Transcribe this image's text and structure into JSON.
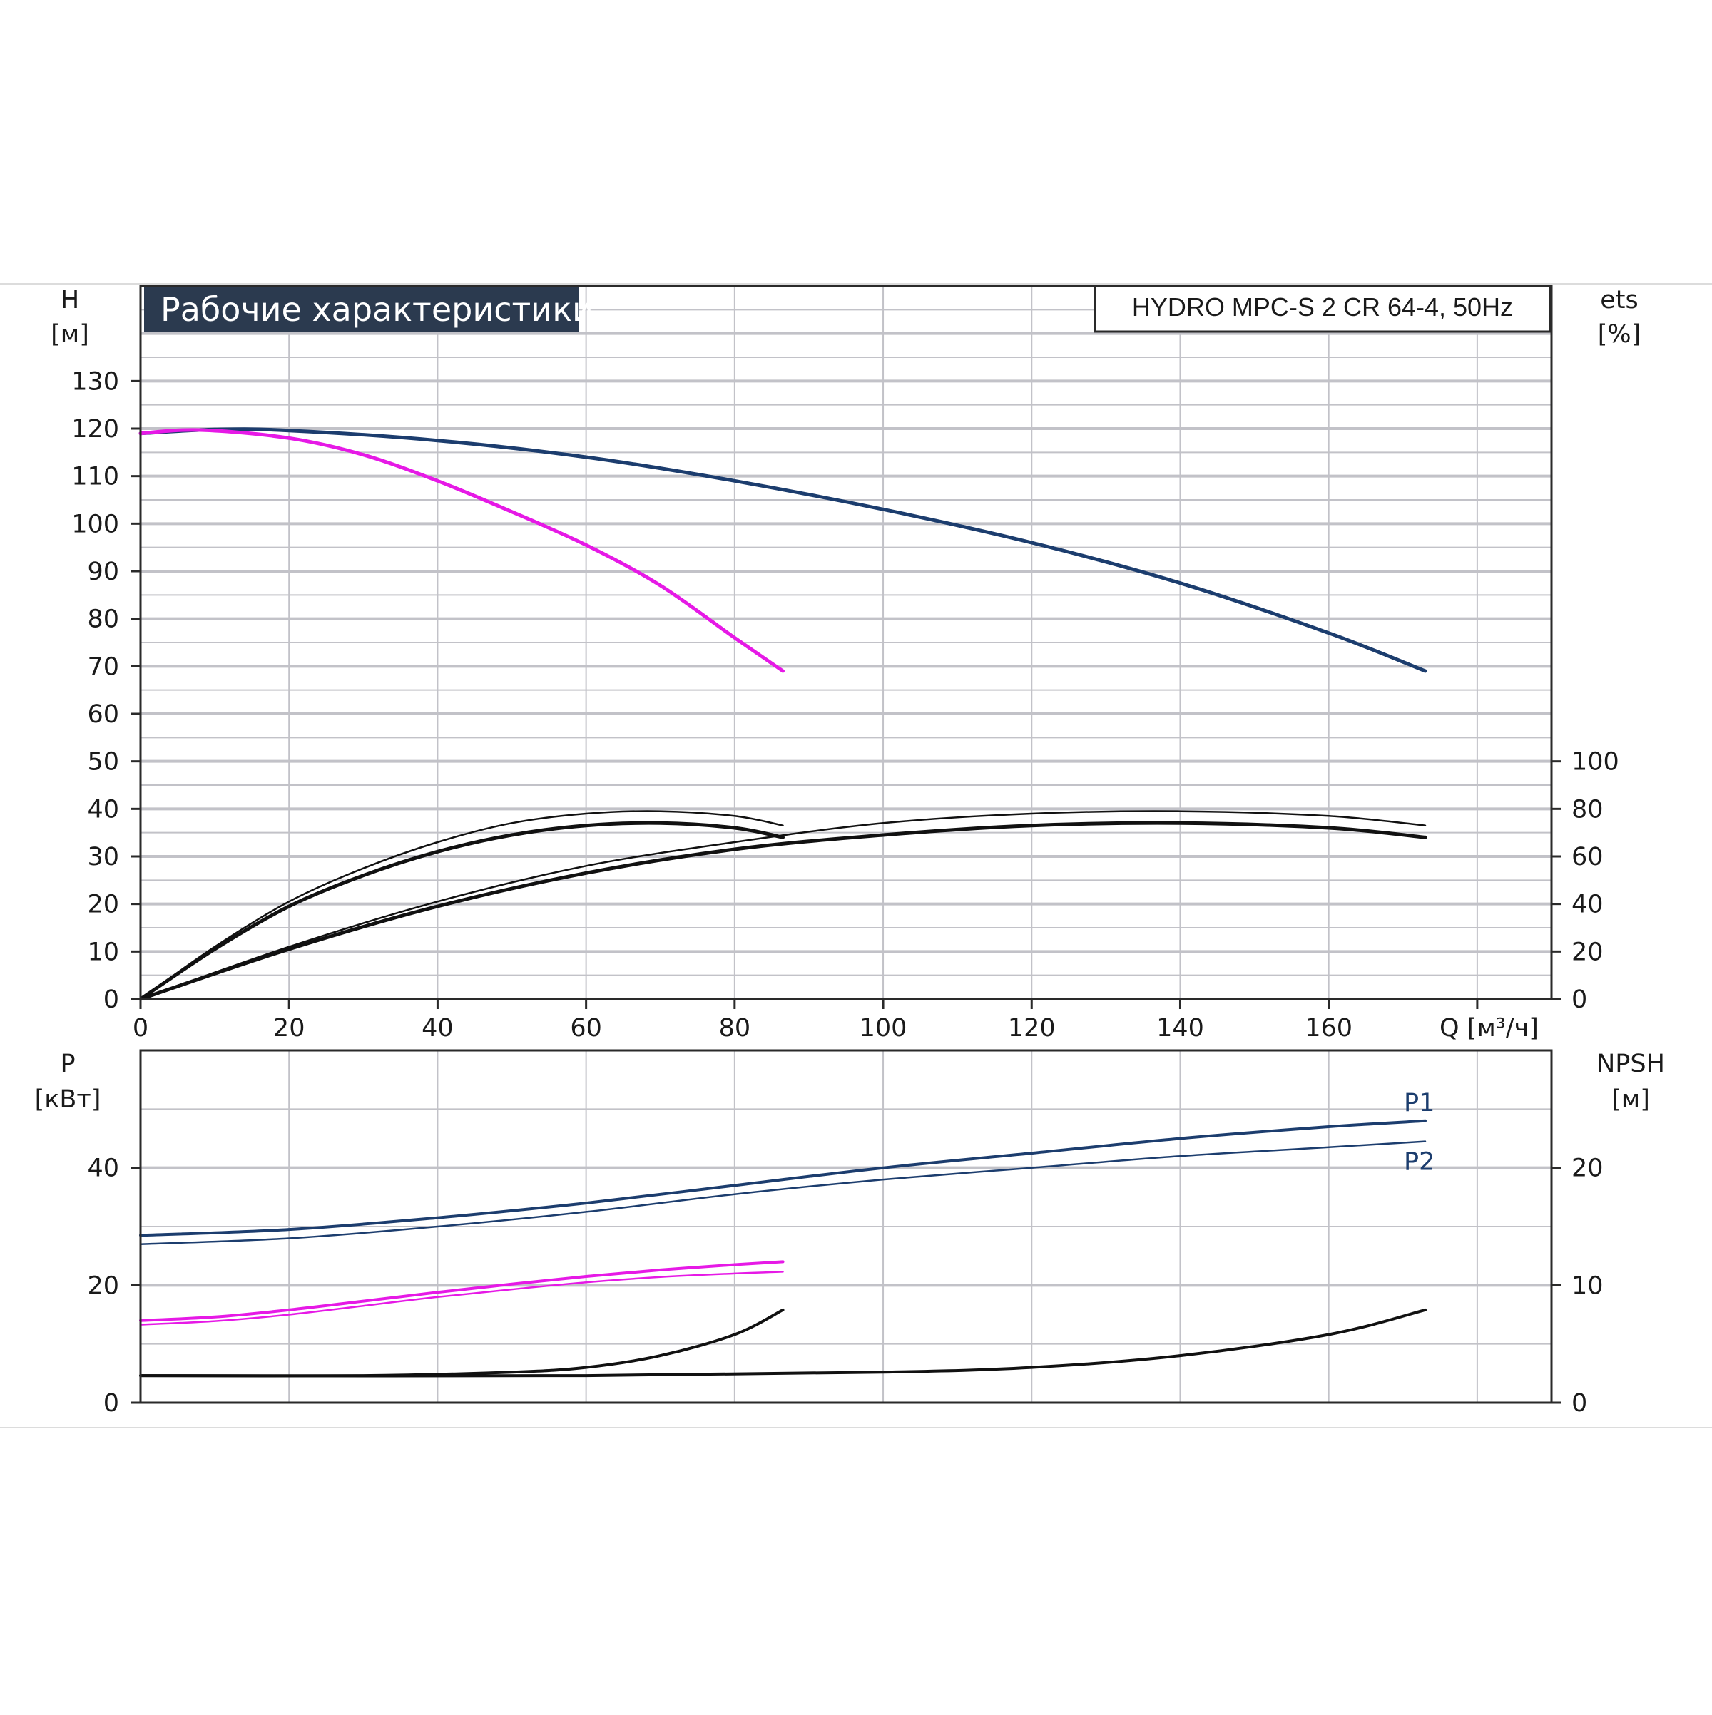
{
  "header": {
    "title": "Рабочие характеристики",
    "model": "HYDRO MPC-S 2 CR 64-4, 50Hz"
  },
  "colors": {
    "blue": "#1c3d6e",
    "magenta": "#e619e6",
    "black": "#111111",
    "title_bg": "#2b3a4f"
  },
  "chart_data": [
    {
      "type": "line",
      "panel": "top",
      "x_label": "Q [м³/ч]",
      "y_left_label": [
        "H",
        "[м]"
      ],
      "y_right_label": [
        "ets",
        "[%]"
      ],
      "x_ticks": [
        0,
        20,
        40,
        60,
        80,
        100,
        120,
        140,
        160
      ],
      "y_left_ticks": [
        0,
        10,
        20,
        30,
        40,
        50,
        60,
        70,
        80,
        90,
        100,
        110,
        120,
        130
      ],
      "y_right_ticks": [
        0,
        20,
        40,
        60,
        80,
        100
      ],
      "xlim": [
        0,
        190
      ],
      "ylim": [
        0,
        150
      ],
      "y_right_lim": [
        0,
        300
      ],
      "grid": true,
      "series": [
        {
          "color": "blue",
          "axis": "left",
          "width": 5,
          "points": [
            [
              0,
              119
            ],
            [
              10,
              119.8
            ],
            [
              20,
              119.6
            ],
            [
              40,
              117.5
            ],
            [
              60,
              114
            ],
            [
              80,
              109
            ],
            [
              100,
              103
            ],
            [
              120,
              96
            ],
            [
              140,
              87.5
            ],
            [
              160,
              77
            ],
            [
              173,
              69
            ]
          ]
        },
        {
          "color": "magenta",
          "axis": "left",
          "width": 5,
          "points": [
            [
              0,
              119
            ],
            [
              8,
              119.7
            ],
            [
              20,
              118
            ],
            [
              30,
              114.5
            ],
            [
              40,
              109
            ],
            [
              50,
              102.5
            ],
            [
              60,
              95.5
            ],
            [
              70,
              87
            ],
            [
              80,
              76
            ],
            [
              86.5,
              69
            ]
          ]
        },
        {
          "color": "black",
          "axis": "right",
          "width": 2.5,
          "points": [
            [
              0,
              0
            ],
            [
              10,
              22
            ],
            [
              20,
              41
            ],
            [
              30,
              55
            ],
            [
              40,
              66
            ],
            [
              50,
              74
            ],
            [
              60,
              78
            ],
            [
              70,
              79
            ],
            [
              80,
              77
            ],
            [
              86.5,
              73
            ]
          ]
        },
        {
          "color": "black",
          "axis": "right",
          "width": 5,
          "points": [
            [
              0,
              0
            ],
            [
              10,
              21
            ],
            [
              20,
              39
            ],
            [
              30,
              52
            ],
            [
              40,
              62
            ],
            [
              50,
              69
            ],
            [
              60,
              73
            ],
            [
              70,
              74
            ],
            [
              80,
              72
            ],
            [
              86.5,
              68
            ]
          ]
        },
        {
          "color": "black",
          "axis": "right",
          "width": 2.5,
          "points": [
            [
              0,
              0
            ],
            [
              20,
              22
            ],
            [
              40,
              41
            ],
            [
              60,
              56
            ],
            [
              80,
              66
            ],
            [
              100,
              74
            ],
            [
              120,
              78
            ],
            [
              140,
              79
            ],
            [
              160,
              77
            ],
            [
              173,
              73
            ]
          ]
        },
        {
          "color": "black",
          "axis": "right",
          "width": 5,
          "points": [
            [
              0,
              0
            ],
            [
              20,
              21
            ],
            [
              40,
              39
            ],
            [
              60,
              53
            ],
            [
              80,
              63
            ],
            [
              100,
              69
            ],
            [
              120,
              73
            ],
            [
              140,
              74
            ],
            [
              160,
              72
            ],
            [
              173,
              68
            ]
          ]
        }
      ]
    },
    {
      "type": "line",
      "panel": "bottom",
      "y_left_label": [
        "P",
        "[кВт]"
      ],
      "y_right_label": [
        "NPSH",
        "[м]"
      ],
      "x_ticks": [
        0,
        20,
        40,
        60,
        80,
        100,
        120,
        140,
        160
      ],
      "y_left_ticks": [
        0,
        20,
        40
      ],
      "y_right_ticks": [
        0,
        10,
        20
      ],
      "xlim": [
        0,
        190
      ],
      "ylim": [
        0,
        60
      ],
      "y_right_lim": [
        0,
        30
      ],
      "grid": true,
      "series": [
        {
          "name": "P1",
          "color": "blue",
          "axis": "left",
          "width": 4,
          "points": [
            [
              0,
              28.5
            ],
            [
              20,
              29.5
            ],
            [
              40,
              31.5
            ],
            [
              60,
              34
            ],
            [
              80,
              37
            ],
            [
              100,
              40
            ],
            [
              120,
              42.5
            ],
            [
              140,
              45
            ],
            [
              160,
              47
            ],
            [
              173,
              48
            ]
          ]
        },
        {
          "name": "P2",
          "color": "blue",
          "axis": "left",
          "width": 2.5,
          "points": [
            [
              0,
              27
            ],
            [
              20,
              28
            ],
            [
              40,
              30
            ],
            [
              60,
              32.5
            ],
            [
              80,
              35.5
            ],
            [
              100,
              38
            ],
            [
              120,
              40
            ],
            [
              140,
              42
            ],
            [
              160,
              43.5
            ],
            [
              173,
              44.5
            ]
          ]
        },
        {
          "color": "magenta",
          "axis": "left",
          "width": 4,
          "points": [
            [
              0,
              14
            ],
            [
              10,
              14.6
            ],
            [
              20,
              15.8
            ],
            [
              30,
              17.3
            ],
            [
              40,
              18.8
            ],
            [
              50,
              20.2
            ],
            [
              60,
              21.5
            ],
            [
              70,
              22.6
            ],
            [
              80,
              23.5
            ],
            [
              86.5,
              24
            ]
          ]
        },
        {
          "color": "magenta",
          "axis": "left",
          "width": 2.5,
          "points": [
            [
              0,
              13.3
            ],
            [
              10,
              13.9
            ],
            [
              20,
              15
            ],
            [
              30,
              16.5
            ],
            [
              40,
              18
            ],
            [
              50,
              19.3
            ],
            [
              60,
              20.5
            ],
            [
              70,
              21.4
            ],
            [
              80,
              22
            ],
            [
              86.5,
              22.3
            ]
          ]
        },
        {
          "color": "black",
          "axis": "right",
          "width": 4,
          "points": [
            [
              0,
              2.3
            ],
            [
              30,
              2.3
            ],
            [
              50,
              2.6
            ],
            [
              60,
              3.0
            ],
            [
              70,
              4.0
            ],
            [
              80,
              5.8
            ],
            [
              86.5,
              7.9
            ]
          ]
        },
        {
          "color": "black",
          "axis": "right",
          "width": 4,
          "points": [
            [
              0,
              2.3
            ],
            [
              60,
              2.3
            ],
            [
              100,
              2.6
            ],
            [
              120,
              3.0
            ],
            [
              140,
              4.0
            ],
            [
              160,
              5.8
            ],
            [
              173,
              7.9
            ]
          ]
        }
      ]
    }
  ]
}
